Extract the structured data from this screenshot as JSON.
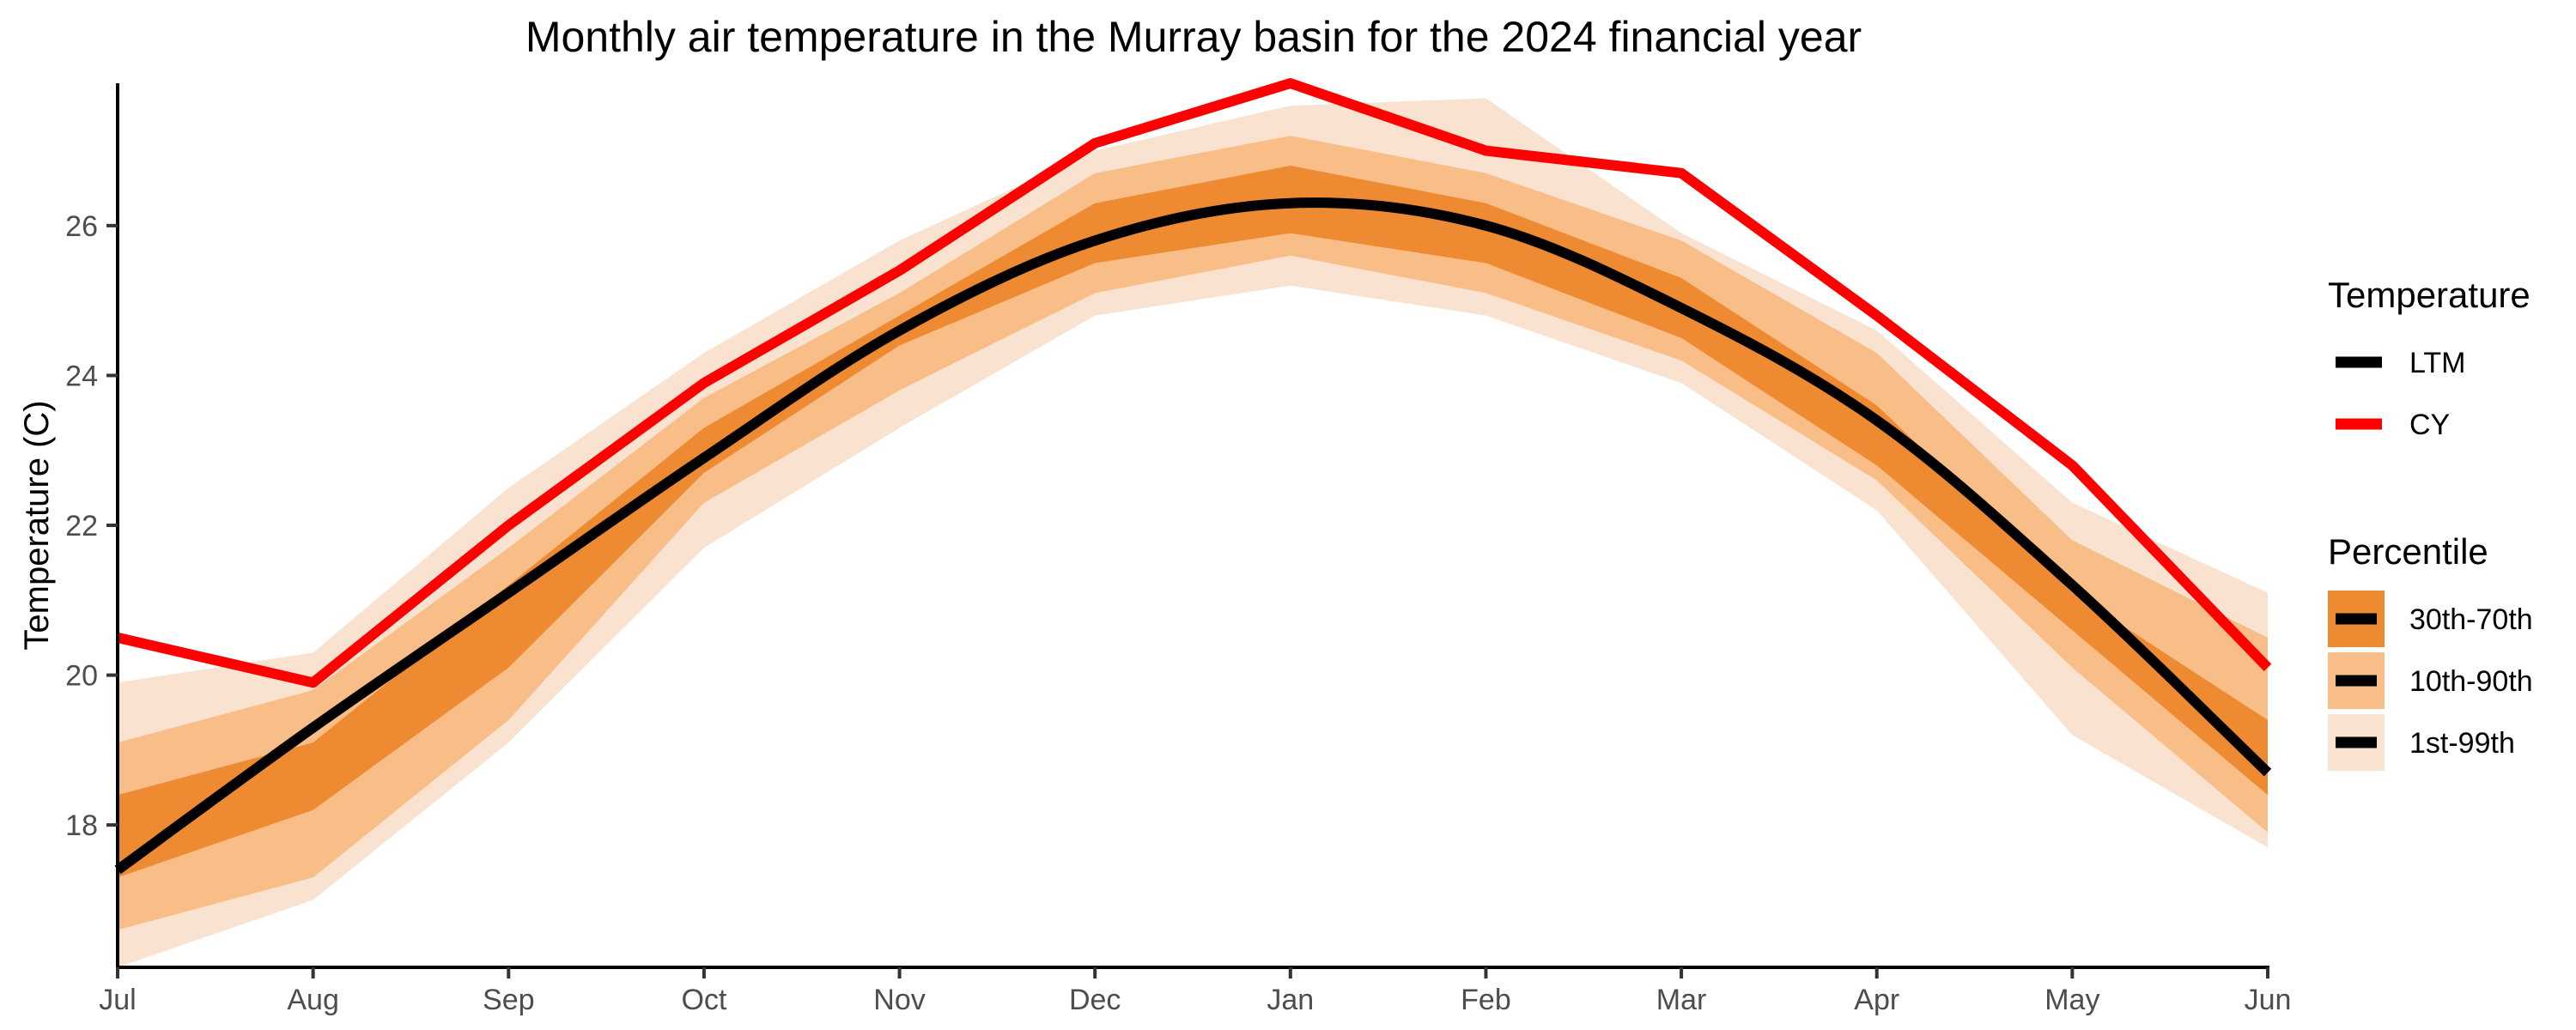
{
  "chart_data": {
    "type": "line",
    "title": "Monthly air temperature in the Murray basin for the 2024 financial year",
    "xlabel": "",
    "ylabel": "Temperature (C)",
    "categories": [
      "Jul",
      "Aug",
      "Sep",
      "Oct",
      "Nov",
      "Dec",
      "Jan",
      "Feb",
      "Mar",
      "Apr",
      "May",
      "Jun"
    ],
    "ylim": [
      16.1,
      27.9
    ],
    "yticks": [
      18,
      20,
      22,
      24,
      26
    ],
    "grid": false,
    "legend_position": "right",
    "series": [
      {
        "name": "LTM",
        "color": "#000000",
        "values": [
          17.4,
          19.3,
          21.1,
          22.9,
          24.6,
          25.8,
          26.3,
          26.0,
          24.9,
          23.4,
          21.2,
          18.7
        ]
      },
      {
        "name": "CY",
        "color": "#ff0000",
        "values": [
          20.5,
          19.9,
          22.0,
          23.9,
          25.4,
          27.1,
          27.9,
          27.0,
          26.7,
          24.8,
          22.8,
          20.1
        ]
      }
    ],
    "bands": [
      {
        "name": "1st-99th",
        "color": "#f9e3d0",
        "lower": [
          16.1,
          17.0,
          19.1,
          21.7,
          23.3,
          24.8,
          25.2,
          24.8,
          23.9,
          22.2,
          19.2,
          17.7
        ],
        "upper": [
          19.9,
          20.3,
          22.5,
          24.3,
          25.8,
          27.0,
          27.6,
          27.7,
          25.9,
          24.6,
          22.3,
          21.1
        ]
      },
      {
        "name": "10th-90th",
        "color": "#f9bd87",
        "lower": [
          16.6,
          17.3,
          19.4,
          22.3,
          23.8,
          25.1,
          25.6,
          25.1,
          24.2,
          22.6,
          20.1,
          17.9
        ],
        "upper": [
          19.1,
          19.8,
          21.7,
          23.7,
          25.1,
          26.7,
          27.2,
          26.7,
          25.8,
          24.3,
          21.8,
          20.5
        ]
      },
      {
        "name": "30th-70th",
        "color": "#ee8a32",
        "lower": [
          17.3,
          18.2,
          20.1,
          22.7,
          24.4,
          25.5,
          25.9,
          25.5,
          24.5,
          22.8,
          20.6,
          18.4
        ],
        "upper": [
          18.4,
          19.1,
          21.2,
          23.3,
          24.8,
          26.3,
          26.8,
          26.3,
          25.3,
          23.6,
          21.1,
          19.4
        ]
      }
    ]
  },
  "legends": {
    "temperature": {
      "title": "Temperature",
      "items": [
        "LTM",
        "CY"
      ]
    },
    "percentile": {
      "title": "Percentile",
      "items": [
        "30th-70th",
        "10th-90th",
        "1st-99th"
      ]
    }
  }
}
